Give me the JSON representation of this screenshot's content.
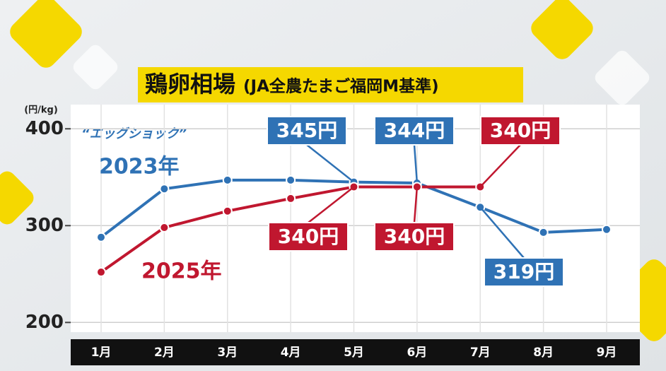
{
  "chart_data": {
    "type": "line",
    "title": "鶏卵相場",
    "subtitle": "(JA全農たまご福岡M基準)",
    "y_unit": "(円/kg)",
    "annotation": "“エッグショック”",
    "categories": [
      "1月",
      "2月",
      "3月",
      "4月",
      "5月",
      "6月",
      "7月",
      "8月",
      "9月"
    ],
    "series": [
      {
        "name": "2023年",
        "color": "#2f72b5",
        "values": [
          288,
          338,
          347,
          347,
          345,
          344,
          319,
          293,
          296
        ],
        "value_labels": [
          null,
          null,
          null,
          null,
          "345円",
          "344円",
          "319円",
          null,
          null
        ]
      },
      {
        "name": "2025年",
        "color": "#c0172f",
        "values": [
          252,
          298,
          315,
          328,
          340,
          340,
          340,
          null,
          null
        ],
        "value_labels": [
          null,
          null,
          null,
          null,
          "340円",
          "340円",
          "340円",
          null,
          null
        ]
      }
    ],
    "ylim": [
      190,
      425
    ],
    "yticks": [
      200,
      300,
      400
    ],
    "grid": true
  }
}
